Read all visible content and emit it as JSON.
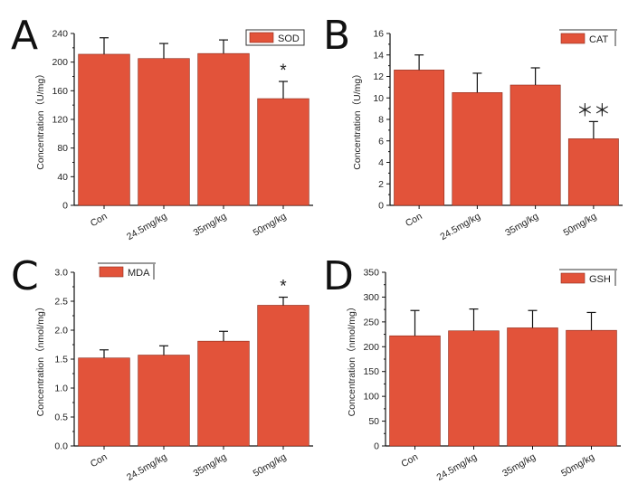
{
  "chart_data": [
    {
      "panel": "A",
      "type": "bar",
      "categories": [
        "Con",
        "24.5mg/kg",
        "35mg/kg",
        "50mg/kg"
      ],
      "values": [
        211,
        205,
        212,
        149
      ],
      "errors": [
        23,
        21,
        19,
        24
      ],
      "significance": [
        "",
        "",
        "",
        "*"
      ],
      "legend": "SOD",
      "legend_position": "top-right",
      "ylabel": "Concentration（U/mg）",
      "ylim": [
        0,
        240
      ],
      "yticks": [
        0,
        40,
        80,
        120,
        160,
        200,
        240
      ],
      "color": "#e2533a"
    },
    {
      "panel": "B",
      "type": "bar",
      "categories": [
        "Con",
        "24.5mg/kg",
        "35mg/kg",
        "50mg/kg"
      ],
      "values": [
        12.6,
        10.5,
        11.2,
        6.2
      ],
      "errors": [
        1.4,
        1.8,
        1.6,
        1.6
      ],
      "significance": [
        "",
        "",
        "",
        "＊＊"
      ],
      "legend": "CAT",
      "legend_position": "top-right",
      "ylabel": "Concentration（U/mg）",
      "ylim": [
        0,
        16
      ],
      "yticks": [
        0,
        2,
        4,
        6,
        8,
        10,
        12,
        14,
        16
      ],
      "color": "#e2533a"
    },
    {
      "panel": "C",
      "type": "bar",
      "categories": [
        "Con",
        "24.5mg/kg",
        "35mg/kg",
        "50mg/kg"
      ],
      "values": [
        1.52,
        1.57,
        1.81,
        2.43
      ],
      "errors": [
        0.14,
        0.16,
        0.17,
        0.14
      ],
      "significance": [
        "",
        "",
        "",
        "*"
      ],
      "legend": "MDA",
      "legend_position": "top-left",
      "ylabel": "Concentration（nmol/mg）",
      "ylim": [
        0,
        3.0
      ],
      "yticks": [
        "0.0",
        "0.5",
        "1.0",
        "1.5",
        "2.0",
        "2.5",
        "3.0"
      ],
      "color": "#e2533a"
    },
    {
      "panel": "D",
      "type": "bar",
      "categories": [
        "Con",
        "24.5mg/kg",
        "35mg/kg",
        "50mg/kg"
      ],
      "values": [
        222,
        232,
        238,
        233
      ],
      "errors": [
        51,
        44,
        35,
        36
      ],
      "significance": [
        "",
        "",
        "",
        ""
      ],
      "legend": "GSH",
      "legend_position": "top-right",
      "ylabel": "Concentration（nmol/mg）",
      "ylim": [
        0,
        350
      ],
      "yticks": [
        0,
        50,
        100,
        150,
        200,
        250,
        300,
        350
      ],
      "color": "#e2533a"
    }
  ]
}
